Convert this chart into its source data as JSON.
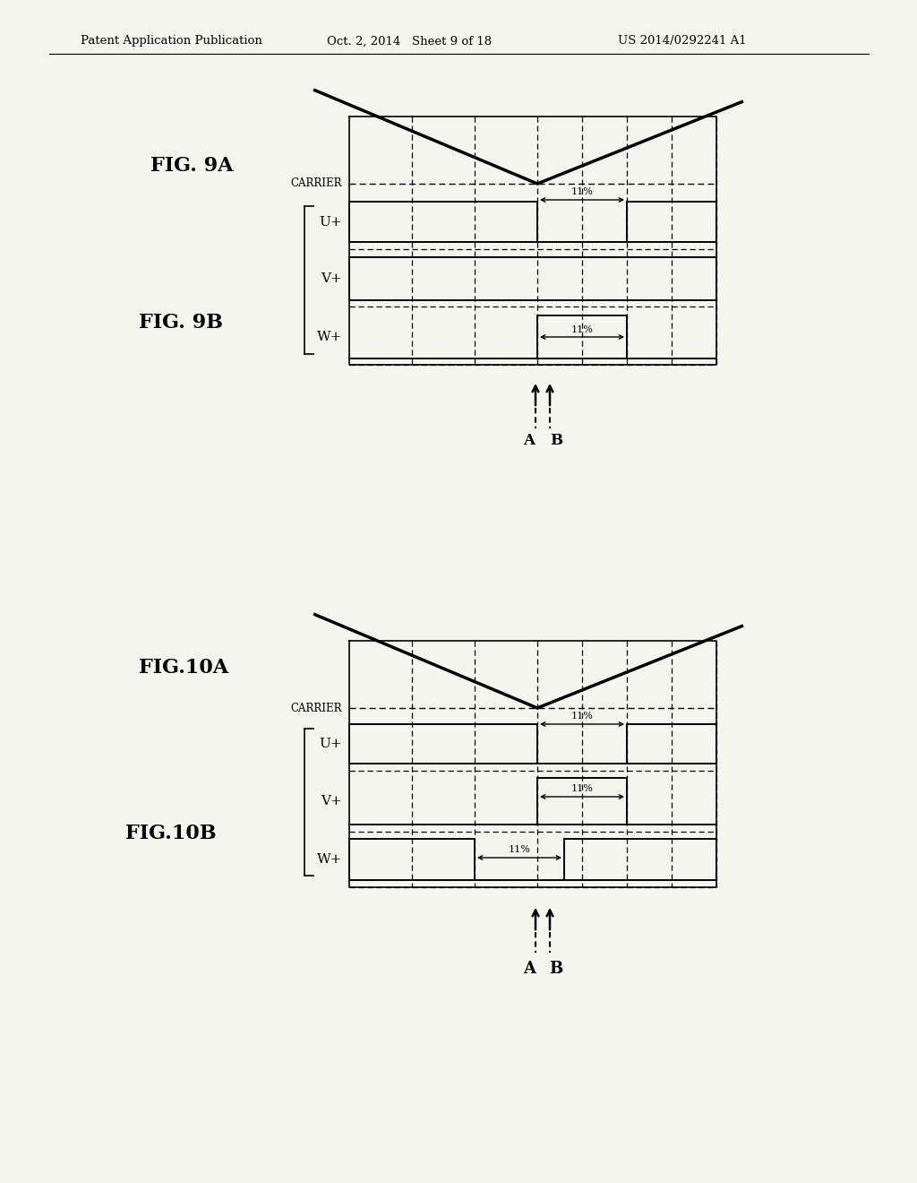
{
  "header_left": "Patent Application Publication",
  "header_mid": "Oct. 2, 2014   Sheet 9 of 18",
  "header_right": "US 2014/0292241 A1",
  "bg_color": "#f5f5f0",
  "fig9a_label": "FIG. 9A",
  "fig9b_label": "FIG. 9B",
  "fig10a_label": "FIG.10A",
  "fig10b_label": "FIG.10B",
  "carrier_label": "CARRIER",
  "u_label": "U+",
  "v_label": "V+",
  "w_label": "W+",
  "pct_label": "11%",
  "ab_label_a": "A",
  "ab_label_b": "B",
  "line_color": "#000000",
  "dashed_color": "#000000"
}
